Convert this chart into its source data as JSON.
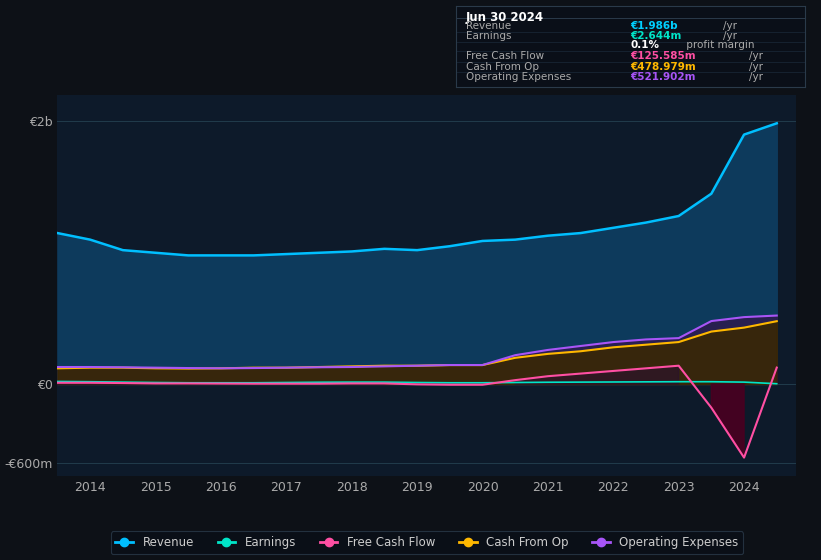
{
  "bg_color": "#0d1117",
  "plot_bg_color": "#0d1a2a",
  "title_box": {
    "date": "Jun 30 2024",
    "rows": [
      {
        "label": "Revenue",
        "value": "€1.986b",
        "unit": "/yr",
        "value_color": "#00cfff"
      },
      {
        "label": "Earnings",
        "value": "€2.644m",
        "unit": "/yr",
        "value_color": "#00e5c8"
      },
      {
        "label": "",
        "value": "0.1%",
        "unit": " profit margin",
        "value_color": "#ffffff"
      },
      {
        "label": "Free Cash Flow",
        "value": "€125.585m",
        "unit": "/yr",
        "value_color": "#ff4fa3"
      },
      {
        "label": "Cash From Op",
        "value": "€478.979m",
        "unit": "/yr",
        "value_color": "#ffb800"
      },
      {
        "label": "Operating Expenses",
        "value": "€521.902m",
        "unit": "/yr",
        "value_color": "#a855f7"
      }
    ]
  },
  "years": [
    2013.5,
    2014.0,
    2014.5,
    2015.0,
    2015.5,
    2016.0,
    2016.5,
    2017.0,
    2017.5,
    2018.0,
    2018.5,
    2019.0,
    2019.5,
    2020.0,
    2020.5,
    2021.0,
    2021.5,
    2022.0,
    2022.5,
    2023.0,
    2023.5,
    2024.0,
    2024.5
  ],
  "revenue": [
    1150,
    1100,
    1020,
    1000,
    980,
    980,
    980,
    990,
    1000,
    1010,
    1030,
    1020,
    1050,
    1090,
    1100,
    1130,
    1150,
    1190,
    1230,
    1280,
    1450,
    1900,
    1986
  ],
  "earnings": [
    20,
    18,
    15,
    12,
    10,
    10,
    10,
    12,
    14,
    15,
    15,
    12,
    10,
    10,
    12,
    14,
    15,
    16,
    17,
    18,
    18,
    15,
    2.644
  ],
  "free_cash_flow": [
    10,
    10,
    8,
    5,
    5,
    4,
    3,
    3,
    3,
    5,
    5,
    -2,
    -5,
    -5,
    30,
    60,
    80,
    100,
    120,
    140,
    -180,
    -560,
    125.585
  ],
  "cash_from_op": [
    120,
    125,
    125,
    120,
    118,
    120,
    125,
    125,
    130,
    135,
    140,
    140,
    145,
    145,
    200,
    230,
    250,
    280,
    300,
    320,
    400,
    430,
    478.979
  ],
  "operating_expenses": [
    130,
    130,
    128,
    125,
    122,
    120,
    122,
    125,
    128,
    130,
    135,
    140,
    145,
    145,
    220,
    260,
    290,
    320,
    340,
    350,
    480,
    510,
    521.902
  ],
  "revenue_color": "#00bfff",
  "earnings_color": "#00e5c8",
  "fcf_color": "#ff4fa3",
  "cashop_color": "#ffb800",
  "opex_color": "#a855f7",
  "ylim": [
    -700,
    2200
  ],
  "yticks": [
    -600,
    0,
    2000
  ],
  "ytick_labels": [
    "-€600m",
    "€0",
    "€2b"
  ],
  "xlim": [
    2013.5,
    2024.8
  ],
  "xticks": [
    2014,
    2015,
    2016,
    2017,
    2018,
    2019,
    2020,
    2021,
    2022,
    2023,
    2024
  ],
  "legend_labels": [
    "Revenue",
    "Earnings",
    "Free Cash Flow",
    "Cash From Op",
    "Operating Expenses"
  ],
  "legend_colors": [
    "#00bfff",
    "#00e5c8",
    "#ff4fa3",
    "#ffb800",
    "#a855f7"
  ]
}
